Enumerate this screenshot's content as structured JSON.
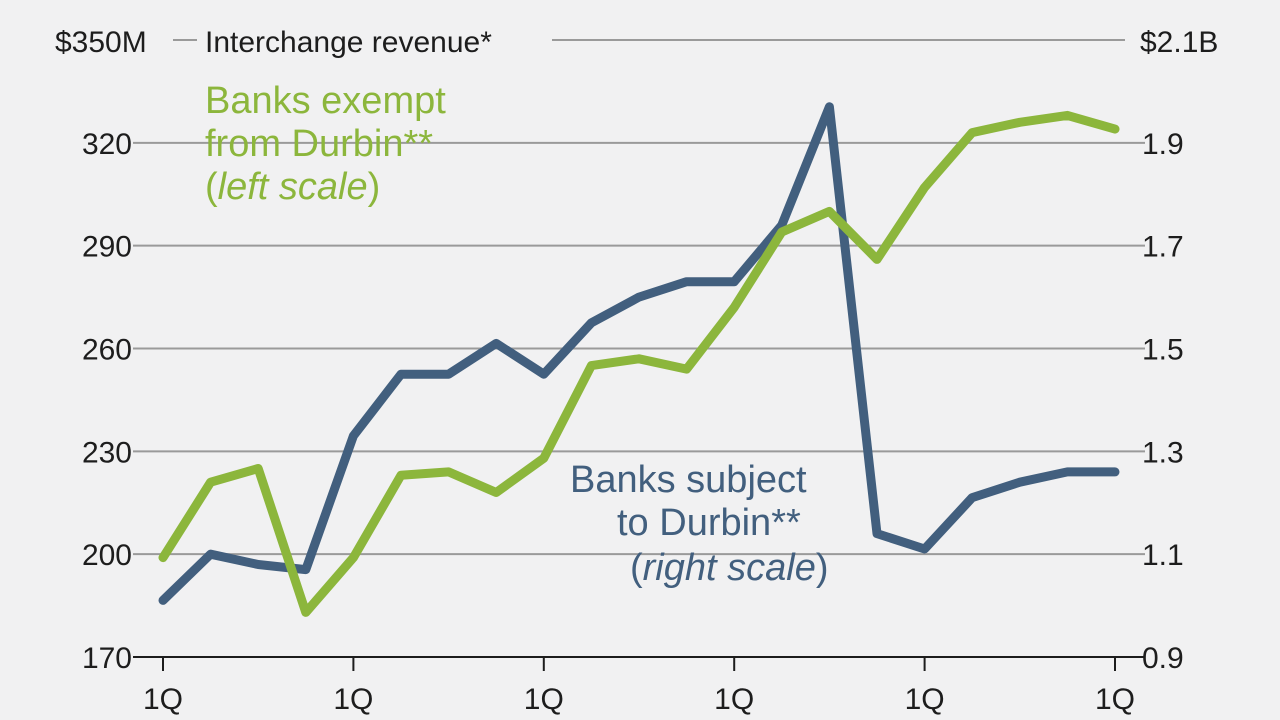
{
  "chart_data": {
    "type": "line",
    "title": "Interchange revenue*",
    "x_tick_labels": [
      "1Q",
      "1Q",
      "1Q",
      "1Q",
      "1Q",
      "1Q"
    ],
    "left_axis": {
      "unit_label": "$350M",
      "ticks": [
        "170",
        "200",
        "230",
        "260",
        "290",
        "320"
      ],
      "ylim": [
        170,
        350
      ]
    },
    "right_axis": {
      "unit_label": "$2.1B",
      "ticks": [
        "0.9",
        "1.1",
        "1.3",
        "1.5",
        "1.7",
        "1.9"
      ],
      "ylim": [
        0.9,
        2.1
      ]
    },
    "series": [
      {
        "name": "Banks exempt from Durbin**",
        "label_lines": [
          "Banks exempt",
          "from Durbin**"
        ],
        "scale_note": "left scale",
        "axis": "left",
        "color": "#8cb63c",
        "values": [
          199,
          221,
          225,
          183,
          199,
          223,
          224,
          218,
          228,
          255,
          257,
          254,
          272,
          294,
          300,
          286,
          307,
          323,
          326,
          328,
          324
        ]
      },
      {
        "name": "Banks subject to Durbin**",
        "label_lines": [
          "Banks subject",
          "to Durbin**"
        ],
        "scale_note": "right scale",
        "axis": "right",
        "color": "#425f7e",
        "values": [
          1.01,
          1.1,
          1.08,
          1.07,
          1.33,
          1.45,
          1.45,
          1.51,
          1.45,
          1.55,
          1.6,
          1.63,
          1.63,
          1.74,
          1.97,
          1.14,
          1.11,
          1.21,
          1.24,
          1.26,
          1.26
        ]
      }
    ]
  }
}
